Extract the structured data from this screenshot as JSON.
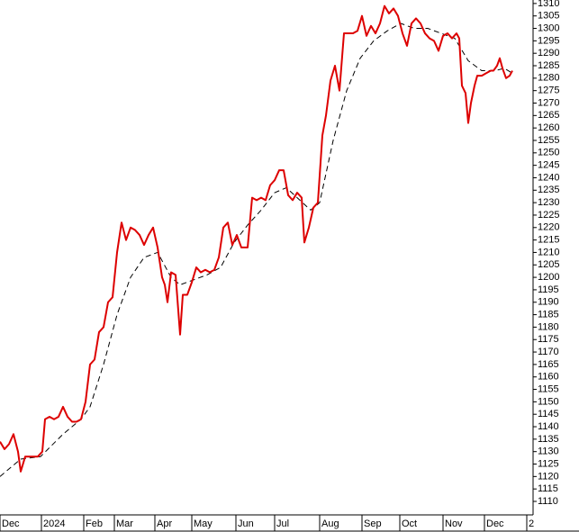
{
  "chart_data": {
    "type": "line",
    "xlim": [
      0,
      592
    ],
    "ylim": [
      1105.3,
      1311.4
    ],
    "xticks": [
      {
        "value": 0,
        "label": "Dec"
      },
      {
        "value": 46,
        "label": "2024"
      },
      {
        "value": 93,
        "label": "Feb"
      },
      {
        "value": 127,
        "label": "Mar"
      },
      {
        "value": 172,
        "label": "Apr"
      },
      {
        "value": 213,
        "label": "May"
      },
      {
        "value": 262,
        "label": "Jun"
      },
      {
        "value": 305,
        "label": "Jul"
      },
      {
        "value": 355,
        "label": "Aug"
      },
      {
        "value": 402,
        "label": "Sep"
      },
      {
        "value": 444,
        "label": "Oct"
      },
      {
        "value": 492,
        "label": "Nov"
      },
      {
        "value": 538,
        "label": "Dec"
      },
      {
        "value": 585,
        "label": "2"
      }
    ],
    "yticks": [
      1110,
      1115,
      1120,
      1125,
      1130,
      1135,
      1140,
      1145,
      1150,
      1155,
      1160,
      1165,
      1170,
      1175,
      1180,
      1185,
      1190,
      1195,
      1200,
      1205,
      1210,
      1215,
      1220,
      1225,
      1230,
      1235,
      1240,
      1245,
      1250,
      1255,
      1260,
      1265,
      1270,
      1275,
      1280,
      1285,
      1290,
      1295,
      1300,
      1305,
      1310
    ],
    "series": [
      {
        "color": "#dd0000",
        "dashed": false,
        "x": [
          0,
          5,
          10,
          15,
          20,
          23,
          28,
          35,
          42,
          47,
          50,
          55,
          60,
          65,
          70,
          75,
          80,
          85,
          90,
          95,
          100,
          105,
          110,
          115,
          120,
          125,
          130,
          135,
          140,
          145,
          150,
          155,
          160,
          165,
          170,
          175,
          180,
          183,
          186,
          190,
          195,
          200,
          203,
          208,
          213,
          218,
          223,
          228,
          233,
          238,
          243,
          248,
          253,
          258,
          263,
          268,
          275,
          280,
          285,
          290,
          295,
          300,
          305,
          310,
          315,
          320,
          325,
          330,
          335,
          338,
          343,
          348,
          353,
          358,
          362,
          367,
          372,
          377,
          382,
          387,
          392,
          397,
          402,
          407,
          412,
          417,
          422,
          427,
          432,
          437,
          442,
          447,
          452,
          457,
          462,
          467,
          472,
          477,
          482,
          487,
          492,
          497,
          502,
          507,
          510,
          513,
          517,
          520,
          523,
          527,
          530,
          535,
          540,
          545,
          548,
          552,
          555,
          558,
          562,
          566,
          569
        ],
        "values": [
          1134,
          1131,
          1133,
          1137,
          1130,
          1122,
          1128,
          1128,
          1128,
          1130,
          1143,
          1144,
          1143,
          1144,
          1148,
          1144,
          1142,
          1142,
          1143,
          1150,
          1165,
          1167,
          1178,
          1180,
          1190,
          1192,
          1210,
          1222,
          1215,
          1220,
          1219,
          1217,
          1213,
          1217,
          1220,
          1212,
          1200,
          1197,
          1190,
          1202,
          1201,
          1177,
          1193,
          1193,
          1198,
          1204,
          1202,
          1203,
          1202,
          1203,
          1208,
          1220,
          1222,
          1213,
          1217,
          1212,
          1212,
          1232,
          1231,
          1232,
          1231,
          1237,
          1239,
          1243,
          1243,
          1233,
          1231,
          1234,
          1232,
          1214,
          1220,
          1228,
          1230,
          1257,
          1265,
          1279,
          1285,
          1275,
          1298,
          1298,
          1298,
          1299,
          1305,
          1297,
          1301,
          1298,
          1302,
          1309,
          1306,
          1308,
          1305,
          1298,
          1293,
          1302,
          1304,
          1302,
          1298,
          1296,
          1295,
          1291,
          1297,
          1298,
          1296,
          1298,
          1296,
          1277,
          1274,
          1262,
          1270,
          1277,
          1281,
          1281,
          1282,
          1283,
          1283,
          1285,
          1288,
          1284,
          1280,
          1281,
          1283
        ]
      },
      {
        "color": "#000000",
        "dashed": true,
        "x": [
          0,
          23,
          45,
          70,
          90,
          100,
          115,
          130,
          145,
          160,
          175,
          190,
          200,
          215,
          230,
          245,
          260,
          275,
          290,
          305,
          318,
          330,
          345,
          355,
          370,
          385,
          400,
          415,
          430,
          445,
          460,
          475,
          490,
          505,
          520,
          535,
          550,
          560,
          569
        ],
        "values": [
          1120,
          1127,
          1128,
          1137,
          1143,
          1148,
          1165,
          1185,
          1200,
          1208,
          1210,
          1200,
          1197,
          1199,
          1201,
          1204,
          1214,
          1221,
          1227,
          1234,
          1236,
          1232,
          1227,
          1230,
          1255,
          1275,
          1288,
          1295,
          1299,
          1302,
          1300,
          1300,
          1298,
          1296,
          1287,
          1283,
          1283,
          1284,
          1282
        ]
      }
    ]
  }
}
